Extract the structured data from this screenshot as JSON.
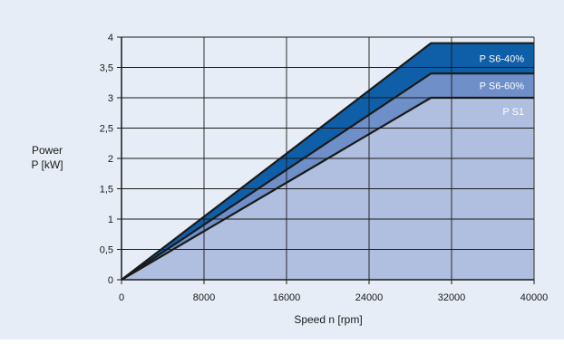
{
  "chart_data": {
    "type": "area",
    "xlabel": "Speed n [rpm]",
    "ylabel_lines": [
      "Power",
      "P [kW]"
    ],
    "xlim": [
      0,
      40000
    ],
    "ylim": [
      0,
      4
    ],
    "x_ticks": [
      "0",
      "8000",
      "16000",
      "24000",
      "32000",
      "40000"
    ],
    "x_tick_values": [
      0,
      8000,
      16000,
      24000,
      32000,
      40000
    ],
    "y_ticks": [
      "0",
      "0,5",
      "1",
      "1,5",
      "2",
      "2,5",
      "3",
      "3,5",
      "4"
    ],
    "y_tick_values": [
      0,
      0.5,
      1,
      1.5,
      2,
      2.5,
      3,
      3.5,
      4
    ],
    "grid": true,
    "series": [
      {
        "name": "P S6-40%",
        "color": "#0f5ea8",
        "points": [
          [
            0,
            0
          ],
          [
            30000,
            3.9
          ],
          [
            40000,
            3.9
          ]
        ]
      },
      {
        "name": "P S6-60%",
        "color": "#6e8fc8",
        "points": [
          [
            0,
            0
          ],
          [
            30000,
            3.4
          ],
          [
            40000,
            3.4
          ]
        ]
      },
      {
        "name": "P S1",
        "color": "#b0bfdf",
        "points": [
          [
            0,
            0
          ],
          [
            30000,
            3.0
          ],
          [
            40000,
            3.0
          ]
        ]
      }
    ]
  }
}
